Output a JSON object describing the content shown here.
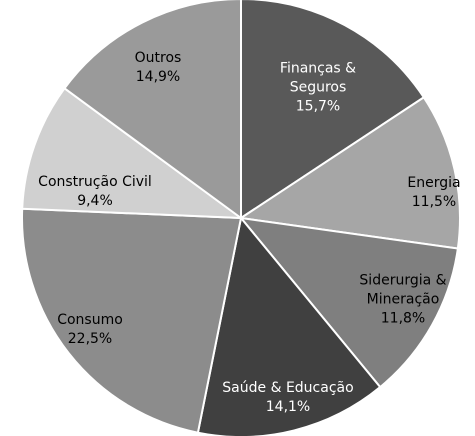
{
  "chart_data": {
    "type": "pie",
    "categories": [
      "Finanças & Seguros",
      "Energia",
      "Siderurgia & Mineração",
      "Saúde & Educação",
      "Consumo",
      "Construção Civil",
      "Outros"
    ],
    "values": [
      15.7,
      11.5,
      11.8,
      14.1,
      22.5,
      9.4,
      14.9
    ],
    "value_labels": [
      "15,7%",
      "11,5%",
      "11,8%",
      "14,1%",
      "22,5%",
      "9,4%",
      "14,9%"
    ],
    "colors": [
      "#595959",
      "#a6a6a6",
      "#7f7f7f",
      "#404040",
      "#8c8c8c",
      "#d0d0d0",
      "#9a9a9a"
    ]
  }
}
